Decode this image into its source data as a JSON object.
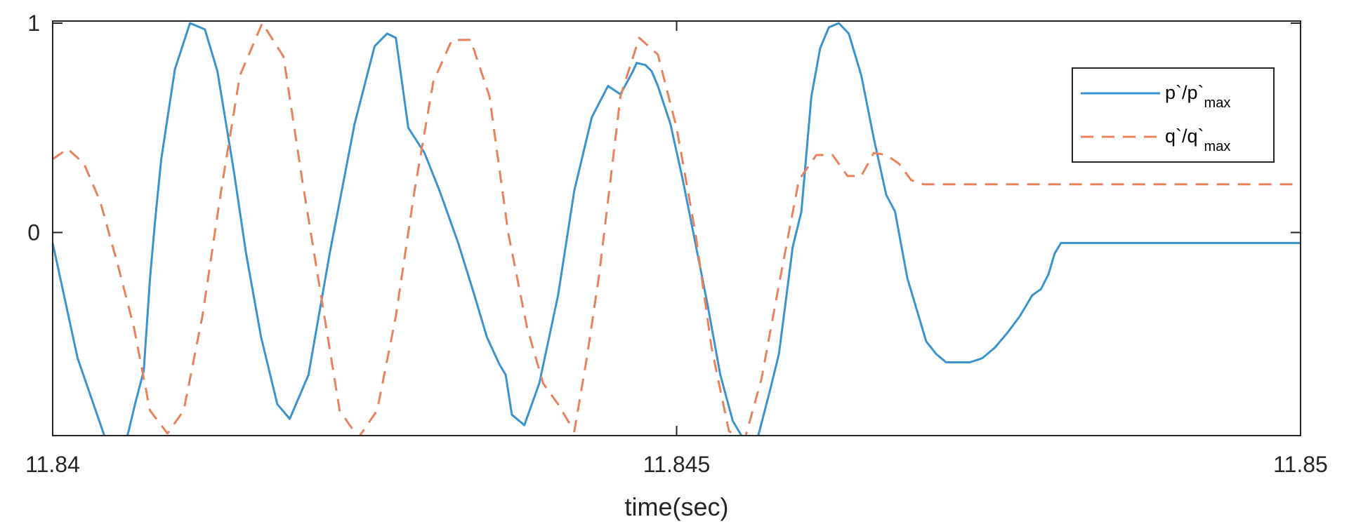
{
  "chart_data": {
    "type": "line",
    "title": "",
    "xlabel": "time(sec)",
    "ylabel": "",
    "xlim": [
      11.84,
      11.85
    ],
    "ylim": [
      -0.97,
      1.01
    ],
    "xticks": [
      11.84,
      11.845,
      11.85
    ],
    "xtick_labels": [
      "11.84",
      "11.845",
      "11.85"
    ],
    "yticks": [
      0,
      1
    ],
    "ytick_labels": [
      "0",
      "1"
    ],
    "grid": false,
    "legend_position": "top-right",
    "legend": [
      {
        "base": "p`/p`",
        "sub": "max"
      },
      {
        "base": "q`/q`",
        "sub": "max"
      }
    ],
    "colors": {
      "p": "#3a93cf",
      "q": "#e8825c",
      "axis": "#262626"
    },
    "series": [
      {
        "id": "p",
        "line_style": "solid",
        "x": [
          11.84,
          11.8402,
          11.84042,
          11.8406,
          11.84066,
          11.84073,
          11.84078,
          11.84082,
          11.84087,
          11.84098,
          11.8411,
          11.84122,
          11.84132,
          11.84145,
          11.84155,
          11.84167,
          11.8418,
          11.8419,
          11.84205,
          11.84222,
          11.84242,
          11.84258,
          11.84268,
          11.84275,
          11.84285,
          11.84298,
          11.8431,
          11.84325,
          11.84338,
          11.84348,
          11.84358,
          11.84363,
          11.84368,
          11.84378,
          11.8439,
          11.84405,
          11.84418,
          11.84432,
          11.84445,
          11.84455,
          11.84465,
          11.84468,
          11.84475,
          11.8448,
          11.84485,
          11.84495,
          11.84505,
          11.84515,
          11.84525,
          11.84535,
          11.84545,
          11.84555,
          11.84565,
          11.84575,
          11.84582,
          11.84587,
          11.84593,
          11.846,
          11.84608,
          11.84615,
          11.84622,
          11.8463,
          11.84638,
          11.84648,
          11.84658,
          11.84668,
          11.84675,
          11.84685,
          11.84693,
          11.847,
          11.84708,
          11.84716,
          11.84725,
          11.84735,
          11.84745,
          11.84755,
          11.84765,
          11.84775,
          11.84785,
          11.84792,
          11.84798,
          11.84803,
          11.84808,
          11.84815,
          11.8482,
          11.84825,
          11.84832,
          11.8484,
          11.84848,
          11.84855,
          11.84862,
          11.84868,
          11.84875,
          11.84882,
          11.8489,
          11.84898,
          11.84908,
          11.84915,
          11.8492,
          11.84925,
          11.84932,
          11.84942,
          11.84955,
          11.8497,
          11.84985,
          11.85
        ],
        "y": [
          -0.05,
          -0.6,
          -0.98,
          -0.97,
          -0.82,
          -0.66,
          -0.22,
          0.05,
          0.35,
          0.78,
          1.0,
          0.97,
          0.77,
          0.3,
          -0.1,
          -0.5,
          -0.82,
          -0.89,
          -0.68,
          -0.1,
          0.52,
          0.89,
          0.95,
          0.93,
          0.5,
          0.38,
          0.2,
          -0.05,
          -0.3,
          -0.5,
          -0.63,
          -0.68,
          -0.87,
          -0.92,
          -0.72,
          -0.3,
          0.2,
          0.55,
          0.7,
          0.66,
          0.77,
          0.81,
          0.8,
          0.77,
          0.7,
          0.52,
          0.25,
          -0.05,
          -0.35,
          -0.68,
          -0.9,
          -1.0,
          -0.98,
          -0.75,
          -0.58,
          -0.35,
          -0.07,
          0.1,
          0.65,
          0.88,
          0.98,
          1.0,
          0.95,
          0.75,
          0.45,
          0.18,
          0.1,
          -0.22,
          -0.38,
          -0.52,
          -0.58,
          -0.62,
          -0.62,
          -0.62,
          -0.6,
          -0.55,
          -0.48,
          -0.4,
          -0.3,
          -0.27,
          -0.2,
          -0.1,
          -0.05,
          -0.05,
          -0.05,
          -0.05,
          -0.05,
          -0.05,
          -0.05,
          -0.05,
          -0.05,
          -0.05,
          -0.05,
          -0.05,
          -0.05,
          -0.05,
          -0.05,
          -0.05,
          -0.05,
          -0.05,
          -0.05,
          -0.05,
          -0.05,
          -0.05,
          -0.05,
          -0.05
        ]
      },
      {
        "id": "q",
        "line_style": "dashed",
        "x": [
          11.84,
          11.84012,
          11.84025,
          11.84038,
          11.84052,
          11.84065,
          11.84078,
          11.84092,
          11.84105,
          11.8412,
          11.84135,
          11.8415,
          11.84168,
          11.84185,
          11.842,
          11.84215,
          11.8423,
          11.84245,
          11.8426,
          11.84275,
          11.8429,
          11.84305,
          11.8432,
          11.84335,
          11.8435,
          11.84365,
          11.8438,
          11.84393,
          11.84405,
          11.84418,
          11.84428,
          11.84438,
          11.84448,
          11.84455,
          11.8447,
          11.84485,
          11.845,
          11.84515,
          11.84528,
          11.84542,
          11.84555,
          11.84568,
          11.84582,
          11.84598,
          11.84612,
          11.84625,
          11.84637,
          11.84648,
          11.84658,
          11.84668,
          11.84678,
          11.84688,
          11.84698,
          11.84708,
          11.84718,
          11.84728,
          11.84738,
          11.84748,
          11.84758,
          11.84768,
          11.84778,
          11.84788,
          11.84798,
          11.84808,
          11.84818,
          11.84828,
          11.84838,
          11.84848,
          11.84858,
          11.84868,
          11.84878,
          11.84888,
          11.84898,
          11.84908,
          11.84918,
          11.84928,
          11.84938,
          11.84948,
          11.84958,
          11.84968,
          11.8498,
          11.8499,
          11.85
        ],
        "y": [
          0.35,
          0.4,
          0.33,
          0.15,
          -0.15,
          -0.45,
          -0.85,
          -0.96,
          -0.85,
          -0.4,
          0.2,
          0.75,
          1.0,
          0.84,
          0.25,
          -0.3,
          -0.85,
          -0.98,
          -0.85,
          -0.4,
          0.2,
          0.72,
          0.92,
          0.92,
          0.65,
          0.0,
          -0.45,
          -0.72,
          -0.82,
          -0.95,
          -0.6,
          -0.2,
          0.3,
          0.65,
          0.93,
          0.85,
          0.5,
          0.0,
          -0.55,
          -0.95,
          -0.98,
          -0.7,
          -0.25,
          0.25,
          0.37,
          0.37,
          0.27,
          0.27,
          0.38,
          0.37,
          0.33,
          0.25,
          0.23,
          0.23,
          0.23,
          0.23,
          0.23,
          0.23,
          0.23,
          0.23,
          0.23,
          0.23,
          0.23,
          0.23,
          0.23,
          0.23,
          0.23,
          0.23,
          0.23,
          0.23,
          0.23,
          0.23,
          0.23,
          0.23,
          0.23,
          0.23,
          0.23,
          0.23,
          0.23,
          0.23,
          0.23,
          0.23,
          0.23
        ]
      }
    ]
  }
}
